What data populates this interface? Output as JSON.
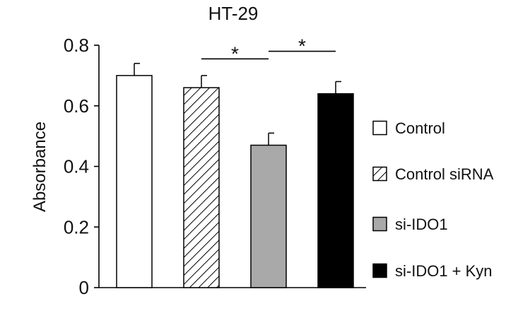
{
  "chart_data": {
    "type": "bar",
    "title": "HT-29",
    "xlabel": "",
    "ylabel": "Absorbance",
    "ylim": [
      0,
      0.8
    ],
    "yticks": [
      0,
      0.2,
      0.4,
      0.6,
      0.8
    ],
    "ytick_labels": [
      "0",
      "0.2",
      "0.4",
      "0.6",
      "0.8"
    ],
    "legend_position": "right",
    "grid": false,
    "series": [
      {
        "name": "Control",
        "value": 0.7,
        "error": 0.04,
        "fill": "white"
      },
      {
        "name": "Control siRNA",
        "value": 0.66,
        "error": 0.04,
        "fill": "hatched"
      },
      {
        "name": "si-IDO1",
        "value": 0.47,
        "error": 0.04,
        "fill": "gray"
      },
      {
        "name": "si-IDO1 + Kyn",
        "value": 0.64,
        "error": 0.04,
        "fill": "black"
      }
    ],
    "annotations": [
      {
        "text": "*",
        "from": 1,
        "to": 2,
        "level": 0.755
      },
      {
        "text": "*",
        "from": 2,
        "to": 3,
        "level": 0.78
      }
    ],
    "colors": {
      "gray": "#a9a9a9",
      "black": "#000000",
      "white": "#ffffff",
      "stroke": "#000000"
    }
  }
}
